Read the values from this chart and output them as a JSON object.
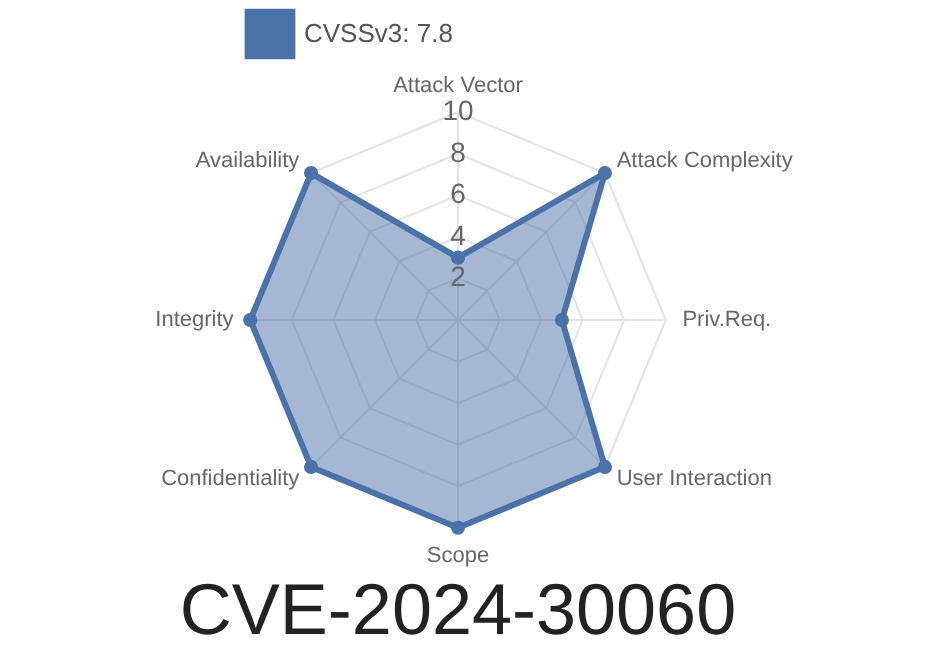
{
  "chart_data": {
    "type": "radar",
    "title": "CVE-2024-30060",
    "categories": [
      "Attack Vector",
      "Attack Complexity",
      "Priv.Req.",
      "User Interaction",
      "Scope",
      "Confidentiality",
      "Integrity",
      "Availability"
    ],
    "series": [
      {
        "name": "CVSSv3: 7.8",
        "color": "#4a72a8",
        "values": [
          3,
          10,
          5,
          10,
          10,
          10,
          10,
          10
        ]
      }
    ],
    "ylim": [
      0,
      10
    ],
    "yticks": [
      2,
      4,
      6,
      8,
      10
    ],
    "grid": true,
    "legend": "top",
    "marker": "circle"
  }
}
